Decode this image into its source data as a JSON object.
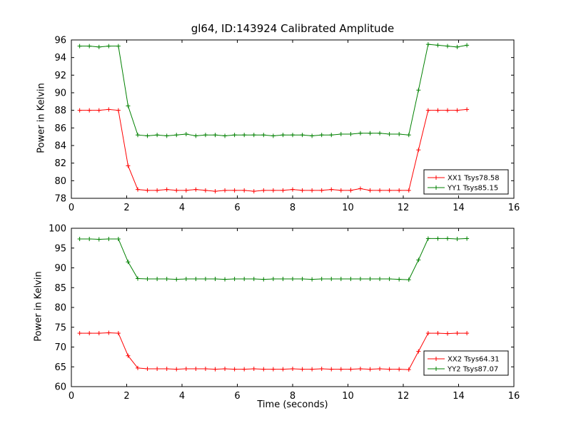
{
  "figure": {
    "background": "#ffffff",
    "text_color": "#000000"
  },
  "chart_data": [
    {
      "type": "line",
      "title": "gl64, ID:143924 Calibrated Amplitude",
      "xlabel": "",
      "ylabel": "Power in Kelvin",
      "xlim": [
        0,
        16
      ],
      "ylim": [
        78,
        96
      ],
      "xticks": [
        0,
        2,
        4,
        6,
        8,
        10,
        12,
        14,
        16
      ],
      "yticks": [
        78,
        80,
        82,
        84,
        86,
        88,
        90,
        92,
        94,
        96
      ],
      "grid": false,
      "legend_position": "lower right",
      "marker": "plus",
      "x": [
        0.3,
        0.65,
        1.0,
        1.35,
        1.7,
        2.05,
        2.4,
        2.75,
        3.1,
        3.45,
        3.8,
        4.15,
        4.5,
        4.85,
        5.2,
        5.55,
        5.9,
        6.25,
        6.6,
        6.95,
        7.3,
        7.65,
        8.0,
        8.35,
        8.7,
        9.05,
        9.4,
        9.75,
        10.1,
        10.45,
        10.8,
        11.15,
        11.5,
        11.85,
        12.2,
        12.55,
        12.9,
        13.25,
        13.6,
        13.95,
        14.3
      ],
      "series": [
        {
          "name": "XX1 Tsys78.58",
          "color": "#ff0000",
          "values": [
            88.0,
            88.0,
            88.0,
            88.1,
            88.0,
            81.7,
            79.0,
            78.9,
            78.9,
            79.0,
            78.9,
            78.9,
            79.0,
            78.9,
            78.8,
            78.9,
            78.9,
            78.9,
            78.8,
            78.9,
            78.9,
            78.9,
            79.0,
            78.9,
            78.9,
            78.9,
            79.0,
            78.9,
            78.9,
            79.1,
            78.9,
            78.9,
            78.9,
            78.9,
            78.9,
            83.5,
            88.0,
            88.0,
            88.0,
            88.0,
            88.1
          ]
        },
        {
          "name": "YY1 Tsys85.15",
          "color": "#008000",
          "values": [
            95.3,
            95.3,
            95.2,
            95.3,
            95.3,
            88.5,
            85.2,
            85.1,
            85.2,
            85.1,
            85.2,
            85.3,
            85.1,
            85.2,
            85.2,
            85.1,
            85.2,
            85.2,
            85.2,
            85.2,
            85.1,
            85.2,
            85.2,
            85.2,
            85.1,
            85.2,
            85.2,
            85.3,
            85.3,
            85.4,
            85.4,
            85.4,
            85.3,
            85.3,
            85.2,
            90.3,
            95.5,
            95.4,
            95.3,
            95.2,
            95.4
          ]
        }
      ]
    },
    {
      "type": "line",
      "title": "",
      "xlabel": "Time (seconds)",
      "ylabel": "Power in Kelvin",
      "xlim": [
        0,
        16
      ],
      "ylim": [
        60,
        100
      ],
      "xticks": [
        0,
        2,
        4,
        6,
        8,
        10,
        12,
        14,
        16
      ],
      "yticks": [
        60,
        65,
        70,
        75,
        80,
        85,
        90,
        95,
        100
      ],
      "grid": false,
      "legend_position": "lower right",
      "marker": "plus",
      "x": [
        0.3,
        0.65,
        1.0,
        1.35,
        1.7,
        2.05,
        2.4,
        2.75,
        3.1,
        3.45,
        3.8,
        4.15,
        4.5,
        4.85,
        5.2,
        5.55,
        5.9,
        6.25,
        6.6,
        6.95,
        7.3,
        7.65,
        8.0,
        8.35,
        8.7,
        9.05,
        9.4,
        9.75,
        10.1,
        10.45,
        10.8,
        11.15,
        11.5,
        11.85,
        12.2,
        12.55,
        12.9,
        13.25,
        13.6,
        13.95,
        14.3
      ],
      "series": [
        {
          "name": "XX2 Tsys64.31",
          "color": "#ff0000",
          "values": [
            73.5,
            73.5,
            73.5,
            73.6,
            73.5,
            67.8,
            64.7,
            64.5,
            64.5,
            64.5,
            64.4,
            64.5,
            64.5,
            64.5,
            64.4,
            64.5,
            64.4,
            64.4,
            64.5,
            64.4,
            64.4,
            64.4,
            64.5,
            64.4,
            64.4,
            64.5,
            64.4,
            64.4,
            64.4,
            64.5,
            64.4,
            64.5,
            64.4,
            64.4,
            64.3,
            68.9,
            73.5,
            73.5,
            73.4,
            73.5,
            73.5
          ]
        },
        {
          "name": "YY2 Tsys87.07",
          "color": "#008000",
          "values": [
            97.3,
            97.3,
            97.2,
            97.3,
            97.3,
            91.5,
            87.3,
            87.2,
            87.2,
            87.2,
            87.1,
            87.2,
            87.2,
            87.2,
            87.2,
            87.1,
            87.2,
            87.2,
            87.2,
            87.1,
            87.2,
            87.2,
            87.2,
            87.2,
            87.1,
            87.2,
            87.2,
            87.2,
            87.2,
            87.2,
            87.2,
            87.2,
            87.2,
            87.1,
            87.0,
            92.0,
            97.4,
            97.4,
            97.4,
            97.3,
            97.4
          ]
        }
      ]
    }
  ]
}
